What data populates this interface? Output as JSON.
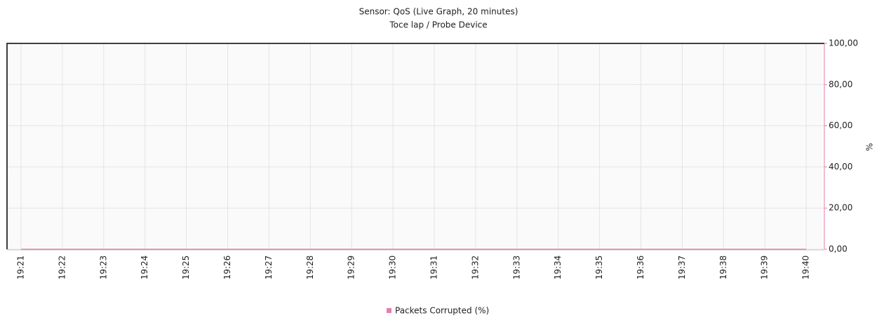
{
  "chart_data": {
    "type": "line",
    "title": "Sensor: QoS (Live Graph, 20 minutes)",
    "subtitle": "Toce lap / Probe Device",
    "categories": [
      "19:21",
      "19:22",
      "19:23",
      "19:24",
      "19:25",
      "19:26",
      "19:27",
      "19:28",
      "19:29",
      "19:30",
      "19:31",
      "19:32",
      "19:33",
      "19:34",
      "19:35",
      "19:36",
      "19:37",
      "19:38",
      "19:39",
      "19:40"
    ],
    "series": [
      {
        "name": "Packets Corrupted (%)",
        "color": "#e87dae",
        "values": [
          0,
          0,
          0,
          0,
          0,
          0,
          0,
          0,
          0,
          0,
          0,
          0,
          0,
          0,
          0,
          0,
          0,
          0,
          0,
          0
        ]
      }
    ],
    "ylabel": "%",
    "ylim": [
      0,
      100
    ],
    "yticks": [
      {
        "value": 0,
        "label": "0,00"
      },
      {
        "value": 20,
        "label": "20,00"
      },
      {
        "value": 40,
        "label": "40,00"
      },
      {
        "value": 60,
        "label": "60,00"
      },
      {
        "value": 80,
        "label": "80,00"
      },
      {
        "value": 100,
        "label": "100,00"
      }
    ],
    "grid": true
  }
}
